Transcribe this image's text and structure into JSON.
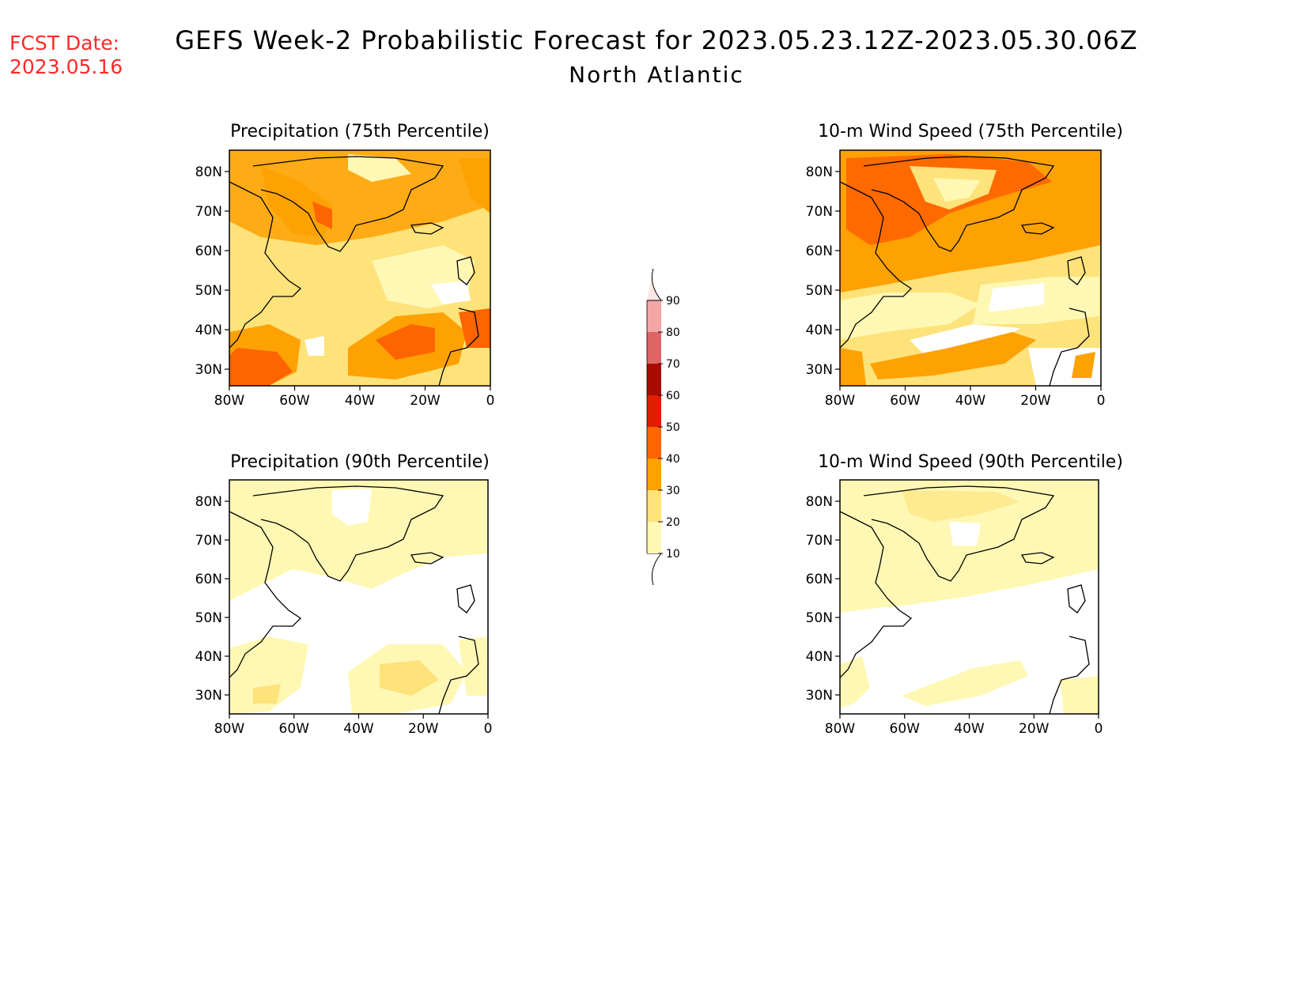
{
  "header": {
    "fcst_label": "FCST Date:",
    "fcst_date": "2023.05.16",
    "title": "GEFS Week-2 Probabilistic Forecast for 2023.05.23.12Z-2023.05.30.06Z",
    "subtitle": "North Atlantic"
  },
  "colorbar": {
    "levels": [
      "10",
      "20",
      "30",
      "40",
      "50",
      "60",
      "70",
      "80",
      "90"
    ],
    "colors": [
      "#ffffff",
      "#fff8b4",
      "#fee27a",
      "#fea103",
      "#fe6400",
      "#e11e00",
      "#a60c00",
      "#dc6666",
      "#f4a6a6",
      "#fde6e6"
    ]
  },
  "axes": {
    "lat_ticks": [
      "80N",
      "70N",
      "60N",
      "50N",
      "40N",
      "30N"
    ],
    "lon_ticks": [
      "80W",
      "60W",
      "40W",
      "20W",
      "0"
    ]
  },
  "panels": [
    {
      "id": "precip75",
      "title": "Precipitation (75th Percentile)"
    },
    {
      "id": "wind75",
      "title": "10-m Wind Speed (75th Percentile)"
    },
    {
      "id": "precip90",
      "title": "Precipitation (90th Percentile)"
    },
    {
      "id": "wind90",
      "title": "10-m Wind Speed (90th Percentile)"
    }
  ]
}
